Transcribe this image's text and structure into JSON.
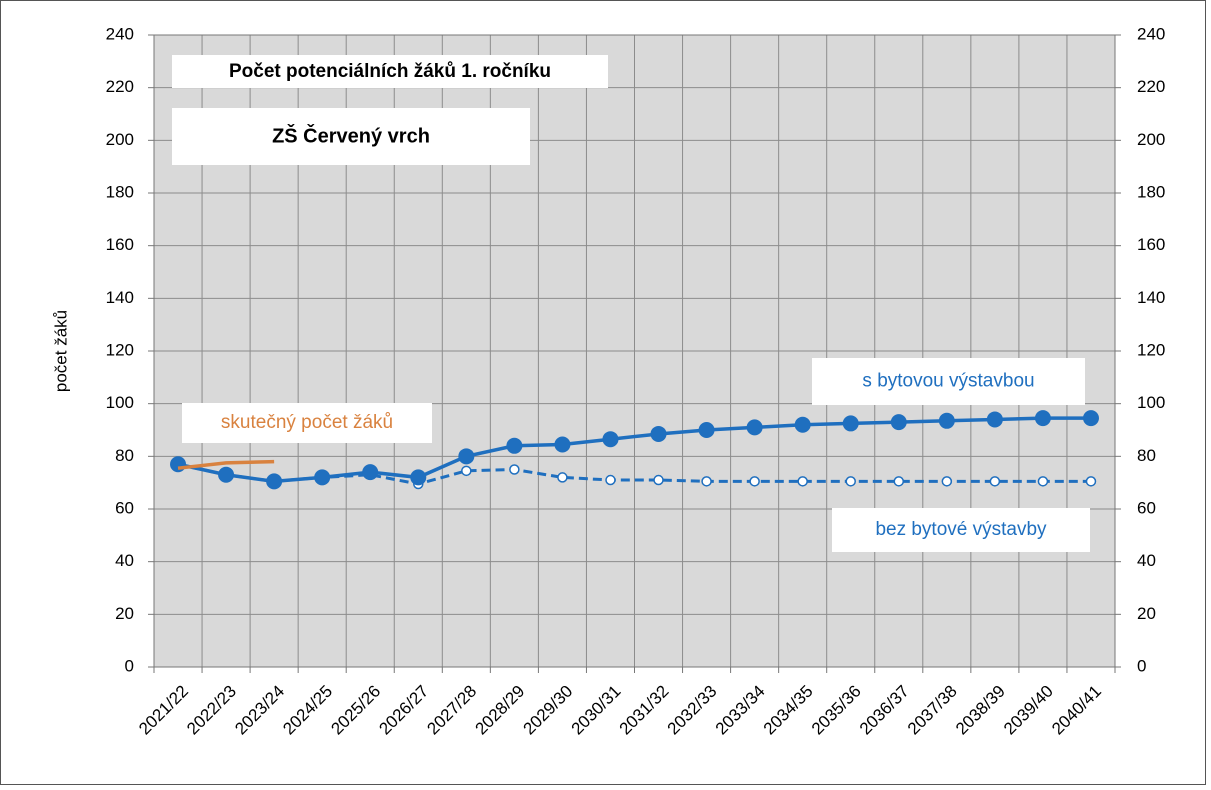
{
  "chart_data": {
    "type": "line",
    "title": "Počet potenciálních žáků 1. ročníku",
    "subtitle": "ZŠ Červený vrch",
    "y_label": "počet žáků",
    "categories": [
      "2021/22",
      "2022/23",
      "2023/24",
      "2024/25",
      "2025/26",
      "2026/27",
      "2027/28",
      "2028/29",
      "2029/30",
      "2030/31",
      "2031/32",
      "2032/33",
      "2033/34",
      "2034/35",
      "2035/36",
      "2036/37",
      "2037/38",
      "2038/39",
      "2039/40",
      "2040/41"
    ],
    "series": [
      {
        "name": "s bytovou výstavbou",
        "color": "#1f6fbf",
        "line": "solid",
        "marker": "large",
        "values": [
          77,
          73,
          70.5,
          72,
          74,
          72,
          80,
          84,
          84.5,
          86.5,
          88.5,
          90,
          91,
          92,
          92.5,
          93,
          93.5,
          94,
          94.5,
          94.5
        ]
      },
      {
        "name": "bez bytové výstavby",
        "color": "#1f6fbf",
        "line": "dashed",
        "marker": "small",
        "values": [
          77,
          73,
          70.5,
          72,
          73,
          69.5,
          74.5,
          75,
          72,
          71,
          71,
          70.5,
          70.5,
          70.5,
          70.5,
          70.5,
          70.5,
          70.5,
          70.5,
          70.5
        ]
      },
      {
        "name": "skutečný počet žáků",
        "color": "#d9823f",
        "line": "solid",
        "marker": "none",
        "values": [
          75.5,
          77.5,
          78,
          null,
          null,
          null,
          null,
          null,
          null,
          null,
          null,
          null,
          null,
          null,
          null,
          null,
          null,
          null,
          null,
          null
        ]
      }
    ],
    "ylim": [
      0,
      240
    ],
    "yticks": [
      0,
      20,
      40,
      60,
      80,
      100,
      120,
      140,
      160,
      180,
      200,
      220,
      240
    ],
    "y2lim": [
      0,
      240
    ],
    "y2ticks": [
      0,
      20,
      40,
      60,
      80,
      100,
      120,
      140,
      160,
      180,
      200,
      220,
      240
    ],
    "grid": true
  }
}
